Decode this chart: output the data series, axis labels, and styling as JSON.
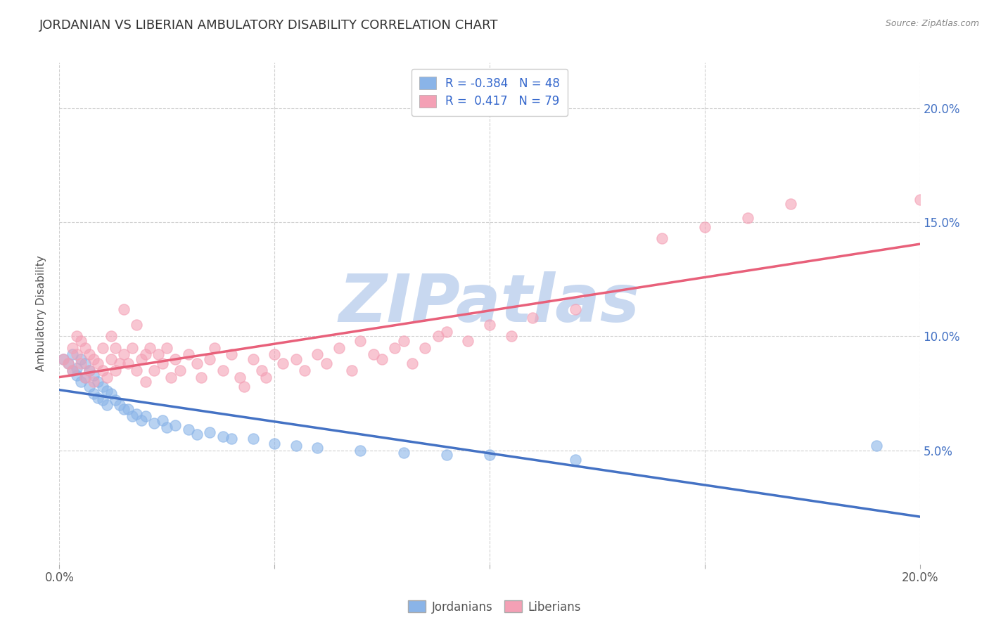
{
  "title": "JORDANIAN VS LIBERIAN AMBULATORY DISABILITY CORRELATION CHART",
  "source": "Source: ZipAtlas.com",
  "ylabel": "Ambulatory Disability",
  "legend_labels": [
    "Jordanians",
    "Liberians"
  ],
  "jordan_R": -0.384,
  "jordan_N": 48,
  "liberia_R": 0.417,
  "liberia_N": 79,
  "x_min": 0.0,
  "x_max": 0.2,
  "y_min": 0.0,
  "y_max": 0.22,
  "ytick_vals": [
    0.05,
    0.1,
    0.15,
    0.2
  ],
  "right_ytick_labels": [
    "5.0%",
    "10.0%",
    "15.0%",
    "20.0%"
  ],
  "background_color": "#ffffff",
  "grid_color": "#d0d0d0",
  "jordan_color": "#8ab4e8",
  "liberia_color": "#f4a0b5",
  "jordan_line_color": "#4472c4",
  "liberia_line_color": "#e8607a",
  "dashed_line_color": "#b0b0b0",
  "right_axis_color": "#4472c4",
  "watermark_text": "ZIPatlas",
  "watermark_color": "#c8d8f0",
  "jordan_scatter": [
    [
      0.001,
      0.09
    ],
    [
      0.002,
      0.088
    ],
    [
      0.003,
      0.092
    ],
    [
      0.003,
      0.085
    ],
    [
      0.004,
      0.086
    ],
    [
      0.004,
      0.083
    ],
    [
      0.005,
      0.09
    ],
    [
      0.005,
      0.08
    ],
    [
      0.006,
      0.088
    ],
    [
      0.006,
      0.082
    ],
    [
      0.007,
      0.085
    ],
    [
      0.007,
      0.078
    ],
    [
      0.008,
      0.083
    ],
    [
      0.008,
      0.075
    ],
    [
      0.009,
      0.08
    ],
    [
      0.009,
      0.073
    ],
    [
      0.01,
      0.078
    ],
    [
      0.01,
      0.072
    ],
    [
      0.011,
      0.076
    ],
    [
      0.011,
      0.07
    ],
    [
      0.012,
      0.075
    ],
    [
      0.013,
      0.072
    ],
    [
      0.014,
      0.07
    ],
    [
      0.015,
      0.068
    ],
    [
      0.016,
      0.068
    ],
    [
      0.017,
      0.065
    ],
    [
      0.018,
      0.066
    ],
    [
      0.019,
      0.063
    ],
    [
      0.02,
      0.065
    ],
    [
      0.022,
      0.062
    ],
    [
      0.024,
      0.063
    ],
    [
      0.025,
      0.06
    ],
    [
      0.027,
      0.061
    ],
    [
      0.03,
      0.059
    ],
    [
      0.032,
      0.057
    ],
    [
      0.035,
      0.058
    ],
    [
      0.038,
      0.056
    ],
    [
      0.04,
      0.055
    ],
    [
      0.045,
      0.055
    ],
    [
      0.05,
      0.053
    ],
    [
      0.055,
      0.052
    ],
    [
      0.06,
      0.051
    ],
    [
      0.07,
      0.05
    ],
    [
      0.08,
      0.049
    ],
    [
      0.09,
      0.048
    ],
    [
      0.1,
      0.048
    ],
    [
      0.12,
      0.046
    ],
    [
      0.19,
      0.052
    ]
  ],
  "liberia_scatter": [
    [
      0.001,
      0.09
    ],
    [
      0.002,
      0.088
    ],
    [
      0.003,
      0.095
    ],
    [
      0.003,
      0.085
    ],
    [
      0.004,
      0.1
    ],
    [
      0.004,
      0.092
    ],
    [
      0.005,
      0.098
    ],
    [
      0.005,
      0.088
    ],
    [
      0.006,
      0.095
    ],
    [
      0.006,
      0.082
    ],
    [
      0.007,
      0.092
    ],
    [
      0.007,
      0.085
    ],
    [
      0.008,
      0.09
    ],
    [
      0.008,
      0.08
    ],
    [
      0.009,
      0.088
    ],
    [
      0.01,
      0.085
    ],
    [
      0.01,
      0.095
    ],
    [
      0.011,
      0.082
    ],
    [
      0.012,
      0.09
    ],
    [
      0.012,
      0.1
    ],
    [
      0.013,
      0.085
    ],
    [
      0.013,
      0.095
    ],
    [
      0.014,
      0.088
    ],
    [
      0.015,
      0.112
    ],
    [
      0.015,
      0.092
    ],
    [
      0.016,
      0.088
    ],
    [
      0.017,
      0.095
    ],
    [
      0.018,
      0.085
    ],
    [
      0.018,
      0.105
    ],
    [
      0.019,
      0.09
    ],
    [
      0.02,
      0.092
    ],
    [
      0.02,
      0.08
    ],
    [
      0.021,
      0.095
    ],
    [
      0.022,
      0.085
    ],
    [
      0.023,
      0.092
    ],
    [
      0.024,
      0.088
    ],
    [
      0.025,
      0.095
    ],
    [
      0.026,
      0.082
    ],
    [
      0.027,
      0.09
    ],
    [
      0.028,
      0.085
    ],
    [
      0.03,
      0.092
    ],
    [
      0.032,
      0.088
    ],
    [
      0.033,
      0.082
    ],
    [
      0.035,
      0.09
    ],
    [
      0.036,
      0.095
    ],
    [
      0.038,
      0.085
    ],
    [
      0.04,
      0.092
    ],
    [
      0.042,
      0.082
    ],
    [
      0.043,
      0.078
    ],
    [
      0.045,
      0.09
    ],
    [
      0.047,
      0.085
    ],
    [
      0.048,
      0.082
    ],
    [
      0.05,
      0.092
    ],
    [
      0.052,
      0.088
    ],
    [
      0.055,
      0.09
    ],
    [
      0.057,
      0.085
    ],
    [
      0.06,
      0.092
    ],
    [
      0.062,
      0.088
    ],
    [
      0.065,
      0.095
    ],
    [
      0.068,
      0.085
    ],
    [
      0.07,
      0.098
    ],
    [
      0.073,
      0.092
    ],
    [
      0.075,
      0.09
    ],
    [
      0.078,
      0.095
    ],
    [
      0.08,
      0.098
    ],
    [
      0.082,
      0.088
    ],
    [
      0.085,
      0.095
    ],
    [
      0.088,
      0.1
    ],
    [
      0.09,
      0.102
    ],
    [
      0.095,
      0.098
    ],
    [
      0.1,
      0.105
    ],
    [
      0.105,
      0.1
    ],
    [
      0.11,
      0.108
    ],
    [
      0.12,
      0.112
    ],
    [
      0.14,
      0.143
    ],
    [
      0.15,
      0.148
    ],
    [
      0.16,
      0.152
    ],
    [
      0.17,
      0.158
    ],
    [
      0.2,
      0.16
    ]
  ]
}
